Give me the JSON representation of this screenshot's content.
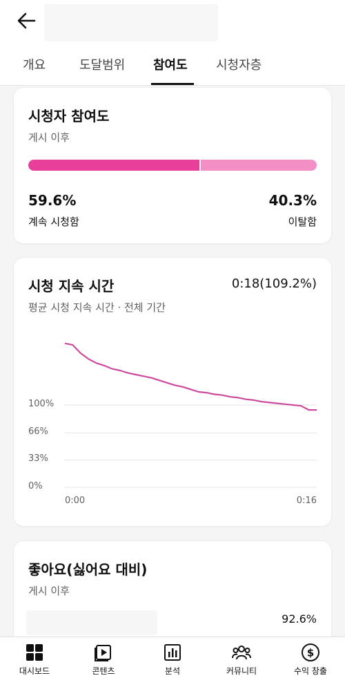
{
  "tabs": [
    {
      "label": "개요"
    },
    {
      "label": "도달범위"
    },
    {
      "label": "참여도"
    },
    {
      "label": "시청자층"
    }
  ],
  "engagement": {
    "title": "시청자 참여도",
    "subtitle": "게시 이후",
    "stay_pct": "59.6%",
    "stay_label": "계속 시청함",
    "leave_pct": "40.3%",
    "leave_label": "이탈함",
    "stay_fraction": 0.596,
    "colors": {
      "stay": "#e8409a",
      "leave": "#f48fc5"
    }
  },
  "retention": {
    "title": "시청 지속 시간",
    "value": "0:18(109.2%)",
    "subtitle": "평균 시청 지속 시간 · 전체 기간",
    "y_ticks": [
      "100%",
      "66%",
      "33%",
      "0%"
    ],
    "x_ticks": [
      "0:00",
      "0:16"
    ]
  },
  "chart_data": {
    "type": "line",
    "x": [
      0,
      0.5,
      1,
      1.5,
      2,
      2.5,
      3,
      3.5,
      4,
      4.5,
      5,
      5.5,
      6,
      6.5,
      7,
      7.5,
      8,
      8.5,
      9,
      9.5,
      10,
      10.5,
      11,
      11.5,
      12,
      12.5,
      13,
      13.5,
      14,
      14.5,
      15,
      15.5,
      16
    ],
    "series": [
      {
        "values": [
          175,
          173,
          163,
          156,
          151,
          148,
          144,
          142,
          139,
          137,
          135,
          133,
          130,
          127,
          124,
          122,
          119,
          116,
          115,
          113,
          112,
          110,
          109,
          107,
          106,
          104,
          103,
          102,
          101,
          100,
          99,
          94,
          94
        ],
        "color": "#cc4a9c"
      }
    ],
    "xlabel": "",
    "ylabel": "",
    "x_tick_labels": [
      "0:00",
      "0:16"
    ],
    "y_tick_labels": [
      "100%",
      "66%",
      "33%",
      "0%"
    ],
    "xlim": [
      0,
      16
    ],
    "ylim": [
      0,
      180
    ],
    "grid": true
  },
  "likes": {
    "title": "좋아요(싫어요 대비)",
    "subtitle": "게시 이후",
    "value": "92.6%"
  },
  "nav": [
    {
      "label": "대시보드",
      "icon": "dashboard-icon"
    },
    {
      "label": "콘텐츠",
      "icon": "content-icon"
    },
    {
      "label": "분석",
      "icon": "analytics-icon"
    },
    {
      "label": "커뮤니티",
      "icon": "community-icon"
    },
    {
      "label": "수익 창출",
      "icon": "monetization-icon"
    }
  ]
}
